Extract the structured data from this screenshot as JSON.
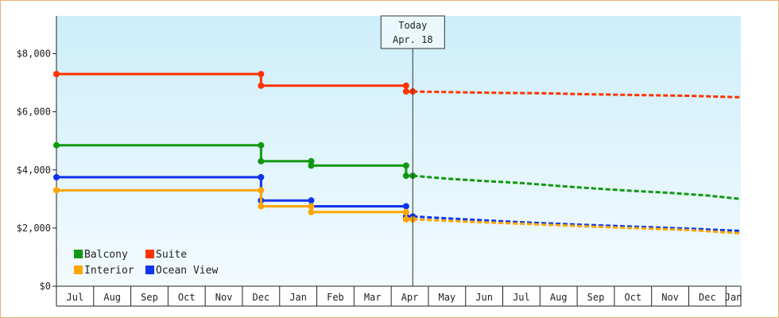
{
  "chart_data": {
    "type": "line",
    "line_style": "step",
    "yaxis": {
      "ticks": [
        0,
        2000,
        4000,
        6000,
        8000
      ],
      "tick_labels": [
        "$0",
        "$2,000",
        "$4,000",
        "$6,000",
        "$8,000"
      ],
      "ylim": [
        0,
        9300
      ]
    },
    "xaxis": {
      "months": [
        "Jul",
        "Aug",
        "Sep",
        "Oct",
        "Nov",
        "Dec",
        "Jan",
        "Feb",
        "Mar",
        "Apr",
        "May",
        "Jun",
        "Jul",
        "Aug",
        "Sep",
        "Oct",
        "Nov",
        "Dec",
        "Jan"
      ],
      "start": "Jul 1",
      "range_months": [
        0,
        18.4
      ]
    },
    "today": {
      "label": "Today",
      "date": "Apr. 18",
      "month_index": 9.58
    },
    "legend": {
      "placement": "bottom-left",
      "entries": [
        "Balcony",
        "Suite",
        "Interior",
        "Ocean View"
      ]
    },
    "colors": {
      "Balcony": "#109910",
      "Suite": "#ff3300",
      "Interior": "#ffa500",
      "Ocean View": "#1033ee"
    },
    "series": [
      {
        "name": "Suite",
        "actual": [
          [
            0,
            7300
          ],
          [
            5.5,
            7300
          ],
          [
            5.5,
            6900
          ],
          [
            9.4,
            6900
          ],
          [
            9.4,
            6700
          ],
          [
            9.58,
            6700
          ]
        ],
        "forecast": [
          [
            9.58,
            6700
          ],
          [
            10.5,
            6680
          ],
          [
            12,
            6650
          ],
          [
            13,
            6640
          ],
          [
            14,
            6610
          ],
          [
            15,
            6590
          ],
          [
            16,
            6570
          ],
          [
            17,
            6550
          ],
          [
            18.4,
            6500
          ]
        ]
      },
      {
        "name": "Balcony",
        "actual": [
          [
            0,
            4850
          ],
          [
            5.5,
            4850
          ],
          [
            5.5,
            4300
          ],
          [
            6.85,
            4300
          ],
          [
            6.85,
            4150
          ],
          [
            9.4,
            4150
          ],
          [
            9.4,
            3800
          ],
          [
            9.58,
            3800
          ]
        ],
        "forecast": [
          [
            9.58,
            3800
          ],
          [
            10.5,
            3700
          ],
          [
            11.5,
            3620
          ],
          [
            12.5,
            3550
          ],
          [
            13.5,
            3450
          ],
          [
            14.5,
            3360
          ],
          [
            15.5,
            3280
          ],
          [
            16.5,
            3210
          ],
          [
            17.5,
            3120
          ],
          [
            18.4,
            3000
          ]
        ]
      },
      {
        "name": "Ocean View",
        "actual": [
          [
            0,
            3750
          ],
          [
            5.5,
            3750
          ],
          [
            5.5,
            2950
          ],
          [
            6.85,
            2950
          ],
          [
            6.85,
            2750
          ],
          [
            9.4,
            2750
          ],
          [
            9.4,
            2400
          ],
          [
            9.58,
            2400
          ]
        ],
        "forecast": [
          [
            9.58,
            2400
          ],
          [
            11,
            2300
          ],
          [
            12.5,
            2200
          ],
          [
            14,
            2120
          ],
          [
            15.5,
            2050
          ],
          [
            17,
            1980
          ],
          [
            18.4,
            1900
          ]
        ]
      },
      {
        "name": "Interior",
        "actual": [
          [
            0,
            3300
          ],
          [
            5.5,
            3300
          ],
          [
            5.5,
            2750
          ],
          [
            6.85,
            2750
          ],
          [
            6.85,
            2550
          ],
          [
            9.4,
            2550
          ],
          [
            9.4,
            2300
          ],
          [
            9.58,
            2300
          ]
        ],
        "forecast": [
          [
            9.58,
            2300
          ],
          [
            11,
            2220
          ],
          [
            12.5,
            2150
          ],
          [
            14,
            2070
          ],
          [
            15.5,
            2000
          ],
          [
            17,
            1930
          ],
          [
            18.4,
            1820
          ]
        ]
      }
    ]
  }
}
